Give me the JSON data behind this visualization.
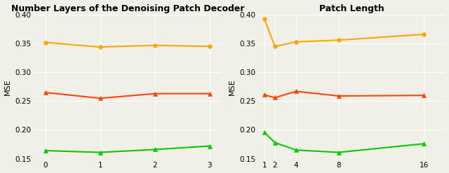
{
  "left": {
    "title": "Number Layers of the Denoising Patch Decoder",
    "xlabel": "",
    "ylabel": "MSE",
    "x": [
      0,
      1,
      2,
      3
    ],
    "series": [
      {
        "values": [
          0.352,
          0.344,
          0.347,
          0.345
        ],
        "color": "#FFA500",
        "marker": "o",
        "linewidth": 1.5
      },
      {
        "values": [
          0.265,
          0.255,
          0.263,
          0.263
        ],
        "color": "#FF4500",
        "marker": "^",
        "linewidth": 1.5
      },
      {
        "values": [
          0.164,
          0.161,
          0.166,
          0.172
        ],
        "color": "#00CC00",
        "marker": "^",
        "linewidth": 1.5
      }
    ],
    "ylim": [
      0.15,
      0.4
    ],
    "yticks": [
      0.15,
      0.2,
      0.25,
      0.3,
      0.35,
      0.4
    ],
    "xticks": [
      0,
      1,
      2,
      3
    ],
    "xlim": [
      -0.2,
      3.2
    ]
  },
  "right": {
    "title": "Patch Length",
    "xlabel": "",
    "ylabel": "MSE",
    "x": [
      1,
      2,
      4,
      8,
      16
    ],
    "series": [
      {
        "values": [
          0.393,
          0.345,
          0.353,
          0.356,
          0.366
        ],
        "color": "#FFA500",
        "marker": "o",
        "linewidth": 1.5
      },
      {
        "values": [
          0.261,
          0.256,
          0.267,
          0.259,
          0.26
        ],
        "color": "#FF4500",
        "marker": "^",
        "linewidth": 1.5
      },
      {
        "values": [
          0.196,
          0.178,
          0.165,
          0.161,
          0.176
        ],
        "color": "#00CC00",
        "marker": "^",
        "linewidth": 1.5
      }
    ],
    "ylim": [
      0.15,
      0.4
    ],
    "yticks": [
      0.15,
      0.2,
      0.25,
      0.3,
      0.35,
      0.4
    ],
    "xticks": [
      1,
      2,
      4,
      8,
      16
    ],
    "xlim": [
      0.5,
      18
    ]
  },
  "background_color": "#f0f0e8",
  "grid_color": "#ffffff",
  "title_fontsize": 9,
  "label_fontsize": 8,
  "tick_fontsize": 7.5
}
